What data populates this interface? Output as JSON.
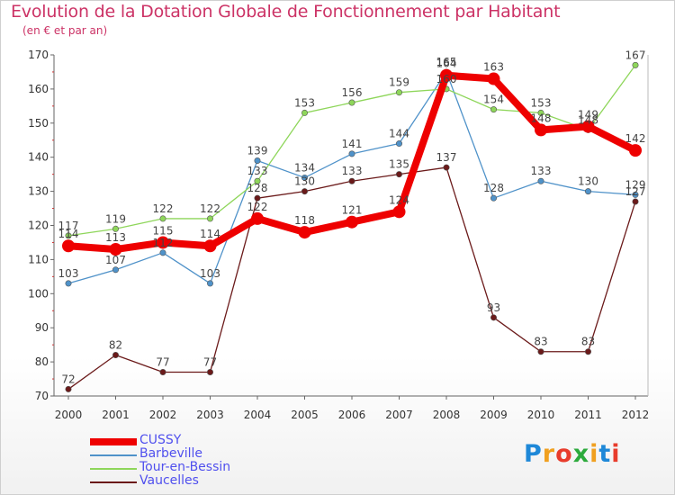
{
  "title": "Evolution de la Dotation Globale de Fonctionnement par Habitant",
  "subtitle": "(en € et par an)",
  "brand": {
    "text": "Proxiti",
    "letter_colors": [
      "#1e88d8",
      "#f0a020",
      "#e83c2c",
      "#2caa3c",
      "#f0a020",
      "#1e88d8",
      "#e83c2c"
    ]
  },
  "chart_data": {
    "type": "line",
    "x": [
      2000,
      2001,
      2002,
      2003,
      2004,
      2005,
      2006,
      2007,
      2008,
      2009,
      2010,
      2011,
      2012
    ],
    "ylim": [
      70,
      170
    ],
    "yticks": [
      70,
      80,
      90,
      100,
      110,
      120,
      130,
      140,
      150,
      160,
      170
    ],
    "grid": false,
    "legend_position": "bottom-left",
    "series": [
      {
        "name": "Vaucelles",
        "color": "#6b1a1a",
        "values": [
          72,
          82,
          77,
          77,
          128,
          130,
          133,
          135,
          137,
          93,
          83,
          83,
          127
        ]
      },
      {
        "name": "Barbeville",
        "color": "#4f92c9",
        "values": [
          103,
          107,
          112,
          103,
          139,
          134,
          141,
          144,
          165,
          128,
          133,
          130,
          129
        ]
      },
      {
        "name": "Tour-en-Bessin",
        "color": "#8ed65a",
        "values": [
          117,
          119,
          122,
          122,
          133,
          153,
          156,
          159,
          160,
          154,
          153,
          148,
          167
        ]
      },
      {
        "name": "CUSSY",
        "color": "#ee0000",
        "values": [
          114,
          113,
          115,
          114,
          122,
          118,
          121,
          124,
          164,
          163,
          148,
          149,
          142
        ]
      }
    ],
    "legend_order": [
      "CUSSY",
      "Barbeville",
      "Tour-en-Bessin",
      "Vaucelles"
    ]
  }
}
